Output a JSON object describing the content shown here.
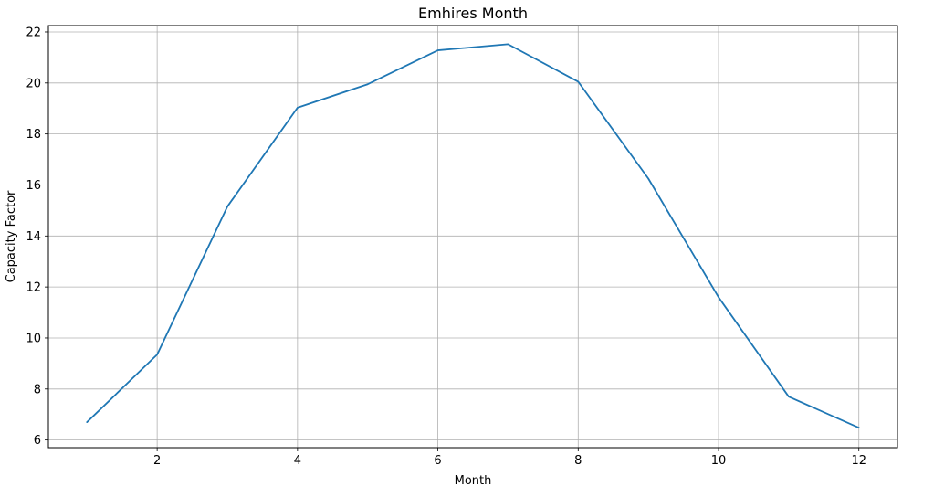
{
  "chart_data": {
    "type": "line",
    "title": "Emhires Month",
    "xlabel": "Month",
    "ylabel": "Capacity Factor",
    "x": [
      1,
      2,
      3,
      4,
      5,
      6,
      7,
      8,
      9,
      10,
      11,
      12
    ],
    "series": [
      {
        "values": [
          6.7,
          9.35,
          15.15,
          19.03,
          19.95,
          21.28,
          21.52,
          20.05,
          16.25,
          11.6,
          7.7,
          6.48
        ],
        "color": "#1f77b4"
      }
    ],
    "xticks": [
      2,
      4,
      6,
      8,
      10,
      12
    ],
    "yticks": [
      6,
      8,
      10,
      12,
      14,
      16,
      18,
      20,
      22
    ],
    "xlim": [
      0.45,
      12.55
    ],
    "ylim": [
      5.7,
      22.25
    ],
    "grid": true,
    "legend": "none"
  }
}
